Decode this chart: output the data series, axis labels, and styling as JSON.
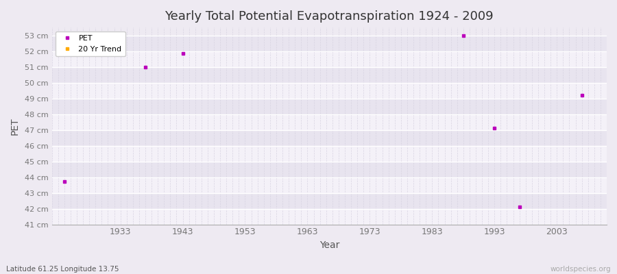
{
  "title": "Yearly Total Potential Evapotranspiration 1924 - 2009",
  "xlabel": "Year",
  "ylabel": "PET",
  "subtitle_left": "Latitude 61.25 Longitude 13.75",
  "subtitle_right": "worldspecies.org",
  "xlim": [
    1922,
    2011
  ],
  "ylim": [
    41,
    53.5
  ],
  "yticks": [
    41,
    42,
    43,
    44,
    45,
    46,
    47,
    48,
    49,
    50,
    51,
    52,
    53
  ],
  "xticks": [
    1933,
    1943,
    1953,
    1963,
    1973,
    1983,
    1993,
    2003
  ],
  "background_color": "#eeeaf2",
  "plot_bg_color": "#eeeaf2",
  "band_light": "#f4f1f8",
  "band_dark": "#e8e4ef",
  "grid_major_color": "#ffffff",
  "grid_minor_color": "#d8d4e2",
  "pet_color": "#bb00bb",
  "trend_color": "#ffaa00",
  "pet_marker": "s",
  "pet_markersize": 3,
  "data_x": [
    1924,
    1937,
    1943,
    1988,
    1993,
    1997,
    2007
  ],
  "data_y": [
    43.7,
    51.0,
    51.85,
    53.0,
    47.1,
    42.1,
    49.2
  ],
  "legend_pet": "PET",
  "legend_trend": "20 Yr Trend"
}
